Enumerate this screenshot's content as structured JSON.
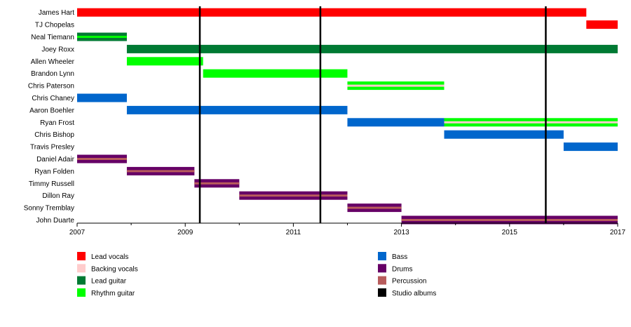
{
  "chart_data": {
    "type": "timeline",
    "xlim": [
      2007,
      2017
    ],
    "x_ticks": [
      {
        "value": 2007,
        "label": "2007"
      },
      {
        "value": 2009,
        "label": "2009"
      },
      {
        "value": 2011,
        "label": "2011"
      },
      {
        "value": 2013,
        "label": "2013"
      },
      {
        "value": 2015,
        "label": "2015"
      },
      {
        "value": 2017,
        "label": "2017"
      }
    ],
    "minor_ticks": [
      2008,
      2010,
      2012,
      2014,
      2016
    ],
    "roles": {
      "lead_vocals": {
        "label": "Lead vocals",
        "color": "#ff0000"
      },
      "backing_vocals": {
        "label": "Backing vocals",
        "color": "#ffcccc"
      },
      "lead_guitar": {
        "label": "Lead guitar",
        "color": "#007a33"
      },
      "rhythm_guitar": {
        "label": "Rhythm guitar",
        "color": "#00ff00"
      },
      "bass": {
        "label": "Bass",
        "color": "#0066cc"
      },
      "drums": {
        "label": "Drums",
        "color": "#660066"
      },
      "percussion": {
        "label": "Percussion",
        "color": "#b85c5c"
      },
      "studio_albums": {
        "label": "Studio albums",
        "color": "#000000"
      }
    },
    "legend_order_left": [
      "lead_vocals",
      "backing_vocals",
      "lead_guitar",
      "rhythm_guitar"
    ],
    "legend_order_right": [
      "bass",
      "drums",
      "percussion",
      "studio_albums"
    ],
    "members": [
      {
        "name": "James Hart",
        "bars": [
          {
            "start": 2007.0,
            "end": 2016.42,
            "role": "lead_vocals"
          }
        ]
      },
      {
        "name": "TJ Chopelas",
        "bars": [
          {
            "start": 2016.42,
            "end": 2017.0,
            "role": "lead_vocals"
          }
        ]
      },
      {
        "name": "Neal Tiemann",
        "bars": [
          {
            "start": 2007.0,
            "end": 2007.92,
            "role": "lead_guitar",
            "inner": "rhythm_guitar"
          }
        ]
      },
      {
        "name": "Joey Roxx",
        "bars": [
          {
            "start": 2007.92,
            "end": 2017.0,
            "role": "lead_guitar"
          }
        ]
      },
      {
        "name": "Allen Wheeler",
        "bars": [
          {
            "start": 2007.92,
            "end": 2009.33,
            "role": "rhythm_guitar"
          }
        ]
      },
      {
        "name": "Brandon Lynn",
        "bars": [
          {
            "start": 2009.33,
            "end": 2012.0,
            "role": "rhythm_guitar"
          }
        ]
      },
      {
        "name": "Chris Paterson",
        "bars": [
          {
            "start": 2012.0,
            "end": 2013.79,
            "role": "rhythm_guitar",
            "inner": "backing_vocals"
          }
        ]
      },
      {
        "name": "Chris Chaney",
        "bars": [
          {
            "start": 2007.0,
            "end": 2007.92,
            "role": "bass"
          }
        ]
      },
      {
        "name": "Aaron Boehler",
        "bars": [
          {
            "start": 2007.92,
            "end": 2012.0,
            "role": "bass"
          }
        ]
      },
      {
        "name": "Ryan Frost",
        "bars": [
          {
            "start": 2012.0,
            "end": 2013.79,
            "role": "bass"
          },
          {
            "start": 2013.79,
            "end": 2017.0,
            "role": "rhythm_guitar",
            "inner": "backing_vocals"
          }
        ]
      },
      {
        "name": "Chris Bishop",
        "bars": [
          {
            "start": 2013.79,
            "end": 2016.0,
            "role": "bass"
          }
        ]
      },
      {
        "name": "Travis Presley",
        "bars": [
          {
            "start": 2016.0,
            "end": 2017.0,
            "role": "bass"
          }
        ]
      },
      {
        "name": "Daniel Adair",
        "bars": [
          {
            "start": 2007.0,
            "end": 2007.92,
            "role": "drums",
            "inner": "percussion"
          }
        ]
      },
      {
        "name": "Ryan Folden",
        "bars": [
          {
            "start": 2007.92,
            "end": 2009.17,
            "role": "drums",
            "inner": "percussion"
          }
        ]
      },
      {
        "name": "Timmy Russell",
        "bars": [
          {
            "start": 2009.17,
            "end": 2010.0,
            "role": "drums",
            "inner": "percussion"
          }
        ]
      },
      {
        "name": "Dillon Ray",
        "bars": [
          {
            "start": 2010.0,
            "end": 2012.0,
            "role": "drums",
            "inner": "percussion"
          }
        ]
      },
      {
        "name": "Sonny Tremblay",
        "bars": [
          {
            "start": 2012.0,
            "end": 2013.0,
            "role": "drums",
            "inner": "percussion"
          }
        ]
      },
      {
        "name": "John Duarte",
        "bars": [
          {
            "start": 2013.0,
            "end": 2017.0,
            "role": "drums",
            "inner": "percussion"
          }
        ]
      }
    ],
    "album_lines": [
      2009.27,
      2011.5,
      2015.67
    ]
  }
}
